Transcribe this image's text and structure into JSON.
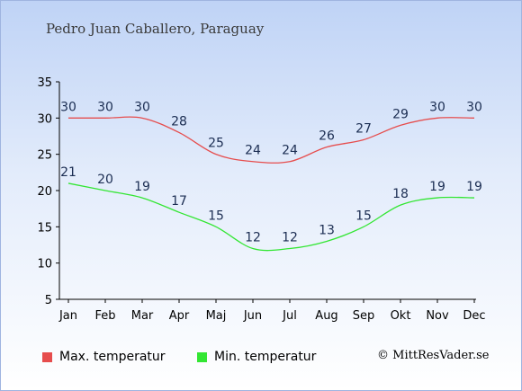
{
  "title": "Pedro Juan Caballero, Paraguay",
  "credit": "© MittResVader.se",
  "chart_data": {
    "type": "line",
    "categories": [
      "Jan",
      "Feb",
      "Mar",
      "Apr",
      "Maj",
      "Jun",
      "Jul",
      "Aug",
      "Sep",
      "Okt",
      "Nov",
      "Dec"
    ],
    "ylim": [
      5,
      35
    ],
    "yticks": [
      5,
      10,
      15,
      20,
      25,
      30,
      35
    ],
    "grid": false,
    "legend_placement": "bottom",
    "series": [
      {
        "name": "Max. temperatur",
        "color": "#e64d4d",
        "values": [
          30,
          30,
          30,
          28,
          25,
          24,
          24,
          26,
          27,
          29,
          30,
          30
        ]
      },
      {
        "name": "Min. temperatur",
        "color": "#33e633",
        "values": [
          21,
          20,
          19,
          17,
          15,
          12,
          12,
          13,
          15,
          18,
          19,
          19
        ]
      }
    ]
  }
}
